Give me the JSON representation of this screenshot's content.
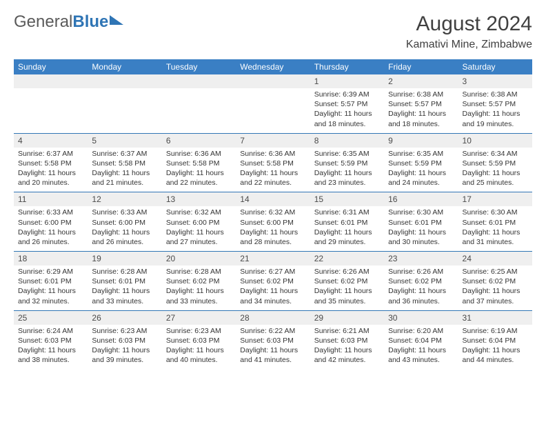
{
  "logo": {
    "text1": "General",
    "text2": "Blue"
  },
  "title": "August 2024",
  "location": "Kamativi Mine, Zimbabwe",
  "colors": {
    "header_bg": "#3a7fc4",
    "header_text": "#ffffff",
    "daynum_bg": "#efefef",
    "border": "#2f75b5",
    "logo_gray": "#5a5a5a"
  },
  "day_names": [
    "Sunday",
    "Monday",
    "Tuesday",
    "Wednesday",
    "Thursday",
    "Friday",
    "Saturday"
  ],
  "weeks": [
    [
      {
        "n": "",
        "sr": "",
        "ss": "",
        "dl": ""
      },
      {
        "n": "",
        "sr": "",
        "ss": "",
        "dl": ""
      },
      {
        "n": "",
        "sr": "",
        "ss": "",
        "dl": ""
      },
      {
        "n": "",
        "sr": "",
        "ss": "",
        "dl": ""
      },
      {
        "n": "1",
        "sr": "6:39 AM",
        "ss": "5:57 PM",
        "dl": "11 hours and 18 minutes."
      },
      {
        "n": "2",
        "sr": "6:38 AM",
        "ss": "5:57 PM",
        "dl": "11 hours and 18 minutes."
      },
      {
        "n": "3",
        "sr": "6:38 AM",
        "ss": "5:57 PM",
        "dl": "11 hours and 19 minutes."
      }
    ],
    [
      {
        "n": "4",
        "sr": "6:37 AM",
        "ss": "5:58 PM",
        "dl": "11 hours and 20 minutes."
      },
      {
        "n": "5",
        "sr": "6:37 AM",
        "ss": "5:58 PM",
        "dl": "11 hours and 21 minutes."
      },
      {
        "n": "6",
        "sr": "6:36 AM",
        "ss": "5:58 PM",
        "dl": "11 hours and 22 minutes."
      },
      {
        "n": "7",
        "sr": "6:36 AM",
        "ss": "5:58 PM",
        "dl": "11 hours and 22 minutes."
      },
      {
        "n": "8",
        "sr": "6:35 AM",
        "ss": "5:59 PM",
        "dl": "11 hours and 23 minutes."
      },
      {
        "n": "9",
        "sr": "6:35 AM",
        "ss": "5:59 PM",
        "dl": "11 hours and 24 minutes."
      },
      {
        "n": "10",
        "sr": "6:34 AM",
        "ss": "5:59 PM",
        "dl": "11 hours and 25 minutes."
      }
    ],
    [
      {
        "n": "11",
        "sr": "6:33 AM",
        "ss": "6:00 PM",
        "dl": "11 hours and 26 minutes."
      },
      {
        "n": "12",
        "sr": "6:33 AM",
        "ss": "6:00 PM",
        "dl": "11 hours and 26 minutes."
      },
      {
        "n": "13",
        "sr": "6:32 AM",
        "ss": "6:00 PM",
        "dl": "11 hours and 27 minutes."
      },
      {
        "n": "14",
        "sr": "6:32 AM",
        "ss": "6:00 PM",
        "dl": "11 hours and 28 minutes."
      },
      {
        "n": "15",
        "sr": "6:31 AM",
        "ss": "6:01 PM",
        "dl": "11 hours and 29 minutes."
      },
      {
        "n": "16",
        "sr": "6:30 AM",
        "ss": "6:01 PM",
        "dl": "11 hours and 30 minutes."
      },
      {
        "n": "17",
        "sr": "6:30 AM",
        "ss": "6:01 PM",
        "dl": "11 hours and 31 minutes."
      }
    ],
    [
      {
        "n": "18",
        "sr": "6:29 AM",
        "ss": "6:01 PM",
        "dl": "11 hours and 32 minutes."
      },
      {
        "n": "19",
        "sr": "6:28 AM",
        "ss": "6:01 PM",
        "dl": "11 hours and 33 minutes."
      },
      {
        "n": "20",
        "sr": "6:28 AM",
        "ss": "6:02 PM",
        "dl": "11 hours and 33 minutes."
      },
      {
        "n": "21",
        "sr": "6:27 AM",
        "ss": "6:02 PM",
        "dl": "11 hours and 34 minutes."
      },
      {
        "n": "22",
        "sr": "6:26 AM",
        "ss": "6:02 PM",
        "dl": "11 hours and 35 minutes."
      },
      {
        "n": "23",
        "sr": "6:26 AM",
        "ss": "6:02 PM",
        "dl": "11 hours and 36 minutes."
      },
      {
        "n": "24",
        "sr": "6:25 AM",
        "ss": "6:02 PM",
        "dl": "11 hours and 37 minutes."
      }
    ],
    [
      {
        "n": "25",
        "sr": "6:24 AM",
        "ss": "6:03 PM",
        "dl": "11 hours and 38 minutes."
      },
      {
        "n": "26",
        "sr": "6:23 AM",
        "ss": "6:03 PM",
        "dl": "11 hours and 39 minutes."
      },
      {
        "n": "27",
        "sr": "6:23 AM",
        "ss": "6:03 PM",
        "dl": "11 hours and 40 minutes."
      },
      {
        "n": "28",
        "sr": "6:22 AM",
        "ss": "6:03 PM",
        "dl": "11 hours and 41 minutes."
      },
      {
        "n": "29",
        "sr": "6:21 AM",
        "ss": "6:03 PM",
        "dl": "11 hours and 42 minutes."
      },
      {
        "n": "30",
        "sr": "6:20 AM",
        "ss": "6:04 PM",
        "dl": "11 hours and 43 minutes."
      },
      {
        "n": "31",
        "sr": "6:19 AM",
        "ss": "6:04 PM",
        "dl": "11 hours and 44 minutes."
      }
    ]
  ],
  "labels": {
    "sunrise": "Sunrise: ",
    "sunset": "Sunset: ",
    "daylight": "Daylight: "
  }
}
